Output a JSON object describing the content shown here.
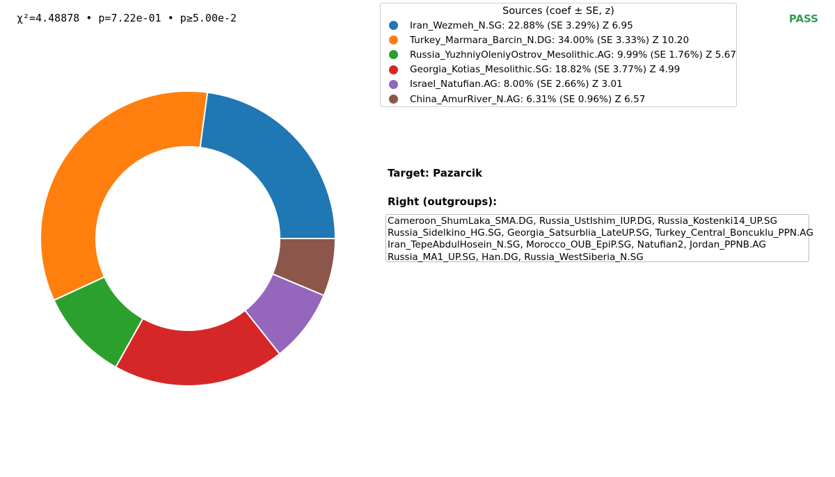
{
  "header": {
    "stats_text": "χ²=4.48878 • p=7.22e-01 • p≥5.00e-2",
    "status": "PASS"
  },
  "legend": {
    "title": "Sources (coef ± SE, z)",
    "items": [
      {
        "label": "Iran_Wezmeh_N.SG: 22.88% (SE 3.29%)  Z 6.95",
        "color": "#1f77b4"
      },
      {
        "label": "Turkey_Marmara_Barcin_N.DG: 34.00% (SE 3.33%)  Z 10.20",
        "color": "#ff7f0e"
      },
      {
        "label": "Russia_YuzhniyOleniyOstrov_Mesolithic.AG: 9.99% (SE 1.76%)  Z 5.67",
        "color": "#2ca02c"
      },
      {
        "label": "Georgia_Kotias_Mesolithic.SG: 18.82% (SE 3.77%)  Z 4.99",
        "color": "#d62728"
      },
      {
        "label": "Israel_Natufian.AG: 8.00% (SE 2.66%)  Z 3.01",
        "color": "#9467bd"
      },
      {
        "label": "China_AmurRiver_N.AG: 6.31% (SE 0.96%)  Z 6.57",
        "color": "#8c564b"
      }
    ]
  },
  "target": "Target: Pazarcik",
  "right": {
    "title": "Right (outgroups):",
    "lines": [
      "Cameroon_ShumLaka_SMA.DG, Russia_UstIshim_IUP.DG, Russia_Kostenki14_UP.SG",
      "Russia_Sidelkino_HG.SG, Georgia_Satsurblia_LateUP.SG, Turkey_Central_Boncuklu_PPN.AG",
      "Iran_TepeAbdulHosein_N.SG, Morocco_OUB_EpiP.SG, Natufian2, Jordan_PPNB.AG",
      "Russia_MA1_UP.SG, Han.DG, Russia_WestSiberia_N.SG"
    ]
  },
  "chart_data": {
    "type": "pie",
    "subtype": "donut",
    "start": "3 o'clock, counterclockwise",
    "categories": [
      "Iran_Wezmeh_N.SG",
      "Turkey_Marmara_Barcin_N.DG",
      "Russia_YuzhniyOleniyOstrov_Mesolithic.AG",
      "Georgia_Kotias_Mesolithic.SG",
      "Israel_Natufian.AG",
      "China_AmurRiver_N.AG"
    ],
    "values": [
      22.88,
      34.0,
      9.99,
      18.82,
      8.0,
      6.31
    ],
    "colors": [
      "#1f77b4",
      "#ff7f0e",
      "#2ca02c",
      "#d62728",
      "#9467bd",
      "#8c564b"
    ],
    "legend_position": "top-right"
  }
}
